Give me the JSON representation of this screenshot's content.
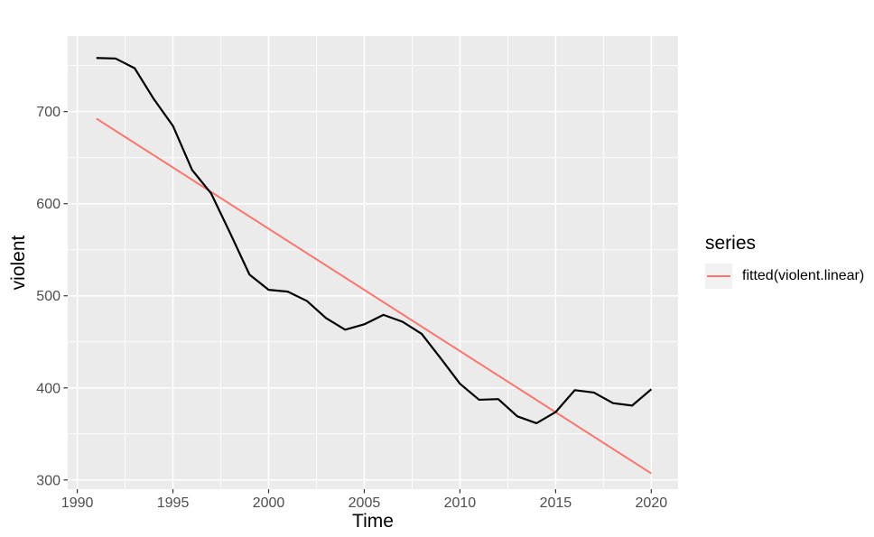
{
  "figure": {
    "background": "#FFFFFF"
  },
  "chart_data": {
    "type": "line",
    "title": "",
    "xlabel": "Time",
    "ylabel": "violent",
    "xlim": [
      1989.5,
      2021.4
    ],
    "ylim": [
      290,
      782
    ],
    "x_ticks": [
      1990,
      1995,
      2000,
      2005,
      2010,
      2015,
      2020
    ],
    "x_minor_ticks": [
      1992.5,
      1997.5,
      2002.5,
      2007.5,
      2012.5,
      2017.5
    ],
    "y_ticks": [
      300,
      400,
      500,
      600,
      700
    ],
    "y_minor_ticks": [
      350,
      450,
      550,
      650,
      750
    ],
    "grid": true,
    "panel_bg": "#EBEBEB",
    "grid_color": "#FFFFFF",
    "tick_label_color": "#4D4D4D",
    "tick_mark_color": "#333333",
    "legend": {
      "title": "series",
      "position": "right",
      "entries": [
        {
          "label": "fitted(violent.linear)",
          "color": "#F8766D",
          "key_bg": "#F2F2F2"
        }
      ]
    },
    "series": [
      {
        "name": "violent",
        "color": "#000000",
        "linewidth": 2.2,
        "z": 2,
        "x": [
          1991,
          1992,
          1993,
          1994,
          1995,
          1996,
          1997,
          1998,
          1999,
          2000,
          2001,
          2002,
          2003,
          2004,
          2005,
          2006,
          2007,
          2008,
          2009,
          2010,
          2011,
          2012,
          2013,
          2014,
          2015,
          2016,
          2017,
          2018,
          2019,
          2020
        ],
        "values": [
          758.2,
          757.7,
          747.1,
          713.6,
          684.5,
          636.6,
          611.0,
          567.6,
          523.0,
          506.5,
          504.5,
          494.4,
          475.8,
          463.2,
          469.0,
          479.3,
          471.8,
          458.6,
          431.9,
          404.5,
          387.1,
          387.8,
          369.1,
          361.6,
          373.7,
          397.5,
          394.9,
          383.4,
          380.8,
          398.5
        ]
      },
      {
        "name": "fitted(violent.linear)",
        "color": "#F8766D",
        "linewidth": 2.0,
        "z": 1,
        "x": [
          1991,
          2020
        ],
        "values": [
          692.4,
          307.1
        ]
      }
    ]
  }
}
